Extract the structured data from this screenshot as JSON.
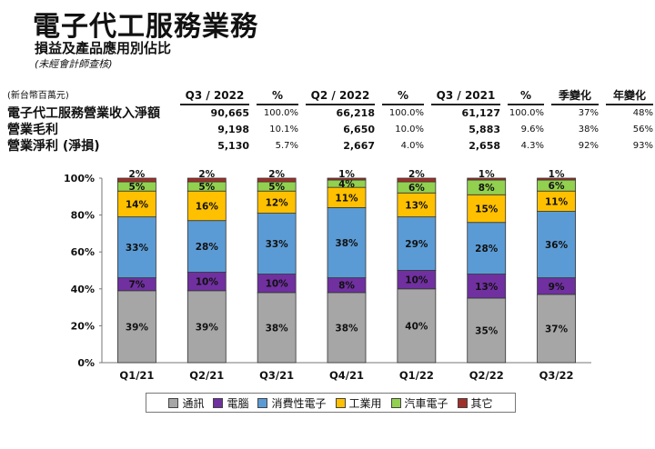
{
  "header": {
    "title": "電子代工服務業務",
    "subtitle": "損益及產品應用別佔比",
    "note": "(未經會計師查核)"
  },
  "table": {
    "unit": "(新台幣百萬元)",
    "columns": [
      "Q3 / 2022",
      "%",
      "Q2 / 2022",
      "%",
      "Q3 / 2021",
      "%",
      "季變化",
      "年變化"
    ],
    "rows": [
      {
        "label": "電子代工服務營業收入淨額",
        "cells": [
          "90,665",
          "100.0%",
          "66,218",
          "100.0%",
          "61,127",
          "100.0%",
          "37%",
          "48%"
        ]
      },
      {
        "label": "營業毛利",
        "cells": [
          "9,198",
          "10.1%",
          "6,650",
          "10.0%",
          "5,883",
          "9.6%",
          "38%",
          "56%"
        ]
      },
      {
        "label": "營業淨利 (淨損)",
        "cells": [
          "5,130",
          "5.7%",
          "2,667",
          "4.0%",
          "2,658",
          "4.3%",
          "92%",
          "93%"
        ]
      }
    ]
  },
  "chart_data": {
    "type": "bar",
    "stacked": true,
    "categories": [
      "Q1/21",
      "Q2/21",
      "Q3/21",
      "Q4/21",
      "Q1/22",
      "Q2/22",
      "Q3/22"
    ],
    "ylim": [
      0,
      100
    ],
    "yticks": [
      "0%",
      "20%",
      "40%",
      "60%",
      "80%",
      "100%"
    ],
    "series": [
      {
        "name": "通訊",
        "color": "#a6a6a6",
        "values": [
          39,
          39,
          38,
          38,
          40,
          35,
          37
        ]
      },
      {
        "name": "電腦",
        "color": "#7030a0",
        "values": [
          7,
          10,
          10,
          8,
          10,
          13,
          9
        ]
      },
      {
        "name": "消費性電子",
        "color": "#5b9bd5",
        "values": [
          33,
          28,
          33,
          38,
          29,
          28,
          36
        ]
      },
      {
        "name": "工業用",
        "color": "#ffc000",
        "values": [
          14,
          16,
          12,
          11,
          13,
          15,
          11
        ]
      },
      {
        "name": "汽車電子",
        "color": "#92d050",
        "values": [
          5,
          5,
          5,
          4,
          6,
          8,
          6
        ]
      },
      {
        "name": "其它",
        "color": "#a0302a",
        "values": [
          2,
          2,
          2,
          1,
          2,
          1,
          1
        ]
      }
    ],
    "legend_position": "bottom"
  }
}
